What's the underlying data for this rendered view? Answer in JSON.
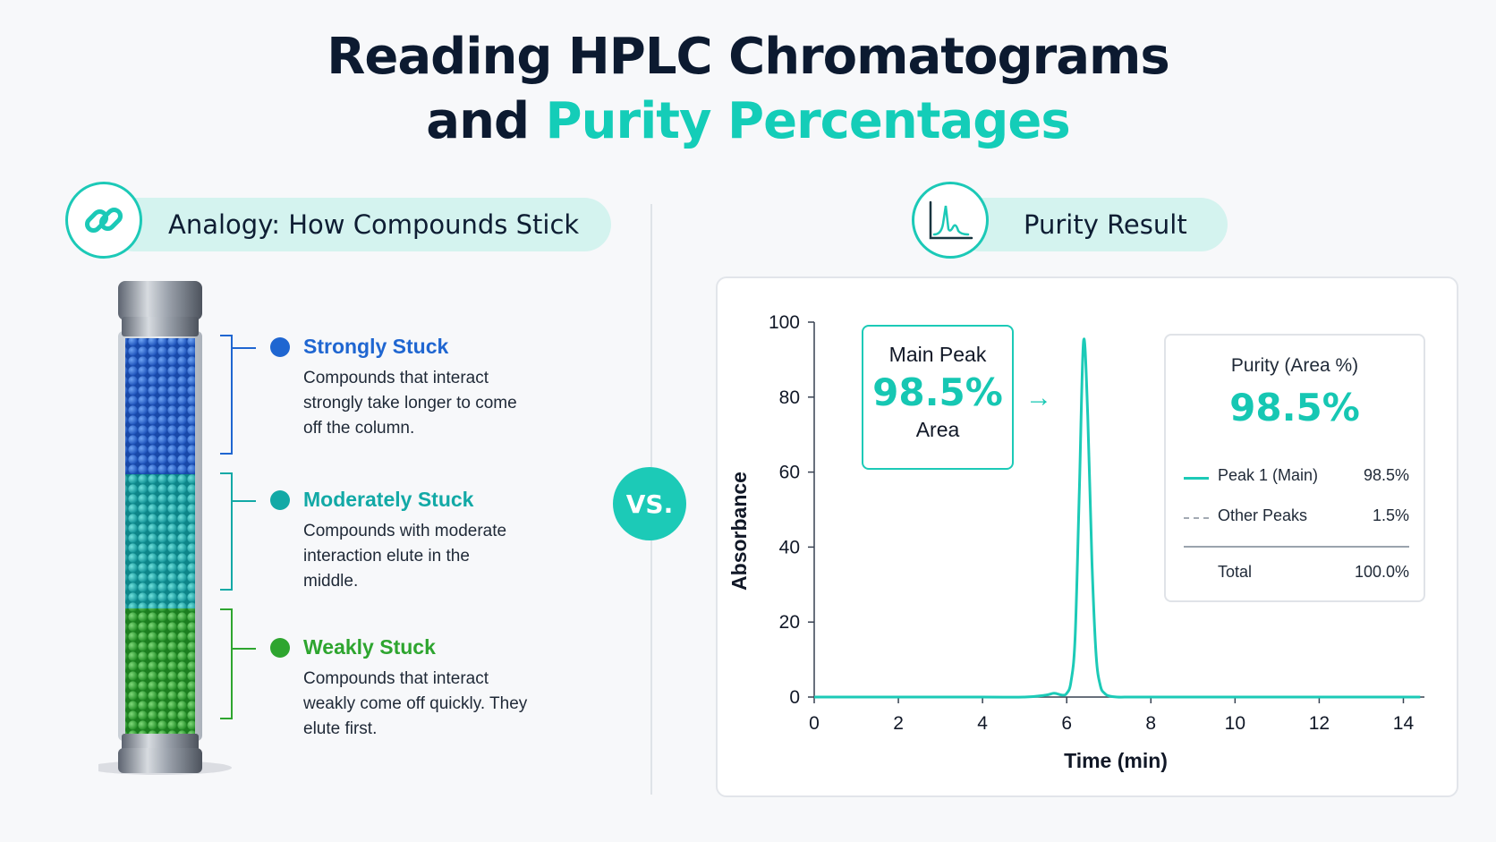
{
  "title": {
    "line1": "Reading HPLC Chromatograms",
    "line2_prefix": "and ",
    "line2_accent": "Purity Percentages"
  },
  "left_panel": {
    "header": "Analogy: How Compounds Stick",
    "icon": "link-icon",
    "groups": [
      {
        "heading": "Strongly Stuck",
        "text": "Compounds that interact strongly take longer to come off the column.",
        "color": "#1f66d1"
      },
      {
        "heading": "Moderately Stuck",
        "text": "Compounds with moderate interaction elute in the middle.",
        "color": "#12a9a6"
      },
      {
        "heading": "Weakly Stuck",
        "text": "Compounds that interact weakly come off quickly. They elute first.",
        "color": "#2ea52f"
      }
    ]
  },
  "vs_label": "VS.",
  "right_panel": {
    "header": "Purity Result",
    "icon": "chromatogram-icon"
  },
  "main_peak": {
    "label": "Main Peak",
    "value": "98.5%",
    "sublabel": "Area"
  },
  "purity": {
    "title": "Purity (Area %)",
    "value": "98.5%",
    "rows": [
      {
        "label": "Peak 1 (Main)",
        "value": "98.5%"
      },
      {
        "label": "Other Peaks",
        "value": "1.5%"
      }
    ],
    "total_label": "Total",
    "total_value": "100.0%"
  },
  "chart_data": {
    "type": "line",
    "xlabel": "Time (min)",
    "ylabel": "Absorbance",
    "xlim": [
      0,
      14.5
    ],
    "ylim": [
      0,
      100
    ],
    "xticks": [
      0,
      2,
      4,
      6,
      8,
      10,
      12,
      14
    ],
    "yticks": [
      0,
      20,
      40,
      60,
      80,
      100
    ],
    "grid": false,
    "series": [
      {
        "color": "#1ccab7",
        "x": [
          0,
          2,
          4,
          5.0,
          5.5,
          5.7,
          5.9,
          6.0,
          6.1,
          6.2,
          6.3,
          6.4,
          6.5,
          6.6,
          6.7,
          6.8,
          6.9,
          7.0,
          7.2,
          7.5,
          8,
          10,
          12,
          14.4
        ],
        "y": [
          0,
          0,
          0,
          0,
          0.5,
          1.0,
          0.5,
          1,
          4,
          16,
          55,
          95,
          75,
          36,
          11,
          3,
          1,
          0.3,
          0,
          0,
          0,
          0,
          0,
          0
        ]
      }
    ]
  }
}
